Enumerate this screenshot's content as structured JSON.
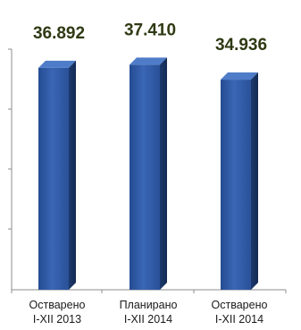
{
  "chart_data": {
    "type": "bar",
    "categories": [
      [
        "Остварено",
        "I-XII 2013"
      ],
      [
        "Планирано",
        "I-XII 2014"
      ],
      [
        "Остварено",
        "I-XII 2014"
      ]
    ],
    "values": [
      36892,
      37410,
      34936
    ],
    "value_labels": [
      "36.892",
      "37.410",
      "34.936"
    ],
    "ylim": [
      0,
      40000
    ],
    "grid": false,
    "colors": {
      "bar": "#2e5aa6",
      "bar_dark": "#1b3563",
      "bar_light": "#4f7cc8",
      "axis": "#8c8c8c",
      "label": "#2f3a14"
    }
  }
}
